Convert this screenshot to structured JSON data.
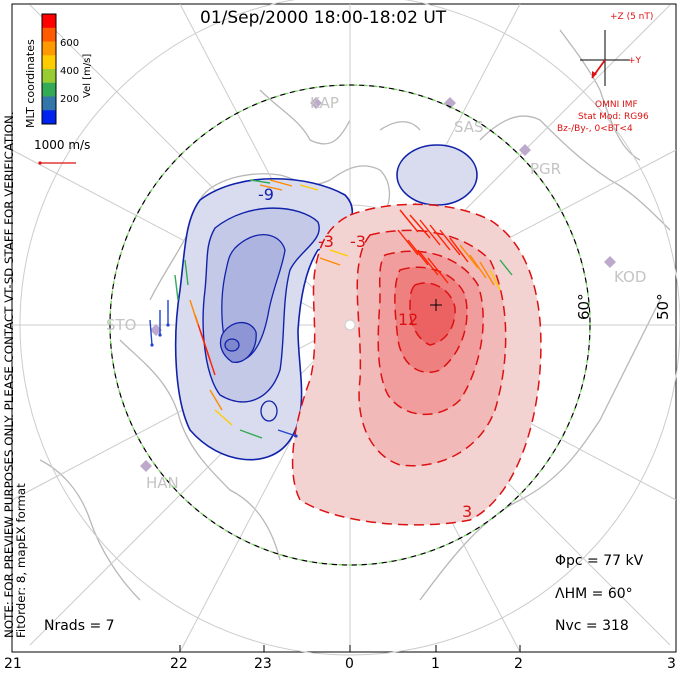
{
  "title": "01/Sep/2000 18:00-18:02 UT",
  "colorbar": {
    "label": "Vel [m/s]",
    "ticks": [
      "600",
      "400",
      "200"
    ],
    "colors": [
      "#ff0000",
      "#ff5a00",
      "#ff9900",
      "#ffcc00",
      "#99cc33",
      "#33aa55",
      "#3377aa",
      "#0022ee"
    ]
  },
  "coords_label": "MLT coordinates",
  "scale_vector": {
    "label": "1000 m/s"
  },
  "notes": {
    "line1": "NOTE: FOR PREVIEW PURPOSES ONLY. PLEASE CONTACT VT-SD STAFF FOR VERIFICATION.",
    "line2": "FitOrder: 8, mapEX format"
  },
  "imf": {
    "z_label": "+Z (5 nT)",
    "y_label": "+Y",
    "source": "OMNI IMF",
    "model": "Stat Mod: RG96",
    "condition": "Bz-/By-, 0<BT<4"
  },
  "stations": [
    "KAP",
    "SAS",
    "PGR",
    "KOD",
    "STO",
    "HAN"
  ],
  "latitude_labels": [
    "60°",
    "50°"
  ],
  "contour_labels": [
    "-9",
    "-3",
    "-3",
    "12",
    "3"
  ],
  "stats": {
    "phi_pc": "Φpc = 77 kV",
    "lambda_hm": "ΛHM = 60°",
    "n_vc": "Nvc = 318",
    "n_rads": "Nrads = 7"
  },
  "mlt_ticks": [
    "21",
    "22",
    "23",
    "0",
    "1",
    "2",
    "3"
  ],
  "colors": {
    "positive": "#dd1111",
    "negative": "#1122aa",
    "hmb": "#66dd44"
  }
}
